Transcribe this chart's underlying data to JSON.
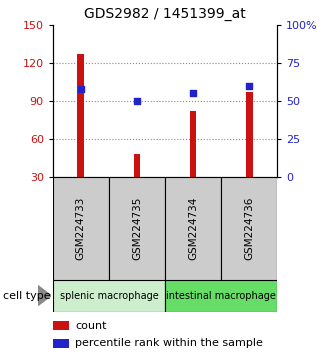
{
  "title": "GDS2982 / 1451399_at",
  "samples": [
    "GSM224733",
    "GSM224735",
    "GSM224734",
    "GSM224736"
  ],
  "counts": [
    127,
    48,
    82,
    97
  ],
  "percentiles": [
    58,
    50,
    55,
    60
  ],
  "ylim_left": [
    30,
    150
  ],
  "ylim_right": [
    0,
    100
  ],
  "yticks_left": [
    30,
    60,
    90,
    120,
    150
  ],
  "yticks_right": [
    0,
    25,
    50,
    75,
    100
  ],
  "ytick_labels_right": [
    "0",
    "25",
    "50",
    "75",
    "100%"
  ],
  "bar_color": "#cc1111",
  "dot_color": "#2222cc",
  "bar_width": 0.12,
  "cell_types": [
    {
      "label": "splenic macrophage",
      "samples": [
        0,
        1
      ],
      "color": "#cceecc"
    },
    {
      "label": "intestinal macrophage",
      "samples": [
        2,
        3
      ],
      "color": "#66dd66"
    }
  ],
  "cell_type_label": "cell type",
  "legend_count_label": "count",
  "legend_pct_label": "percentile rank within the sample",
  "grid_color": "#888888",
  "sample_box_color": "#cccccc",
  "title_fontsize": 10,
  "axis_label_color_left": "#cc1111",
  "axis_label_color_right": "#2222cc"
}
